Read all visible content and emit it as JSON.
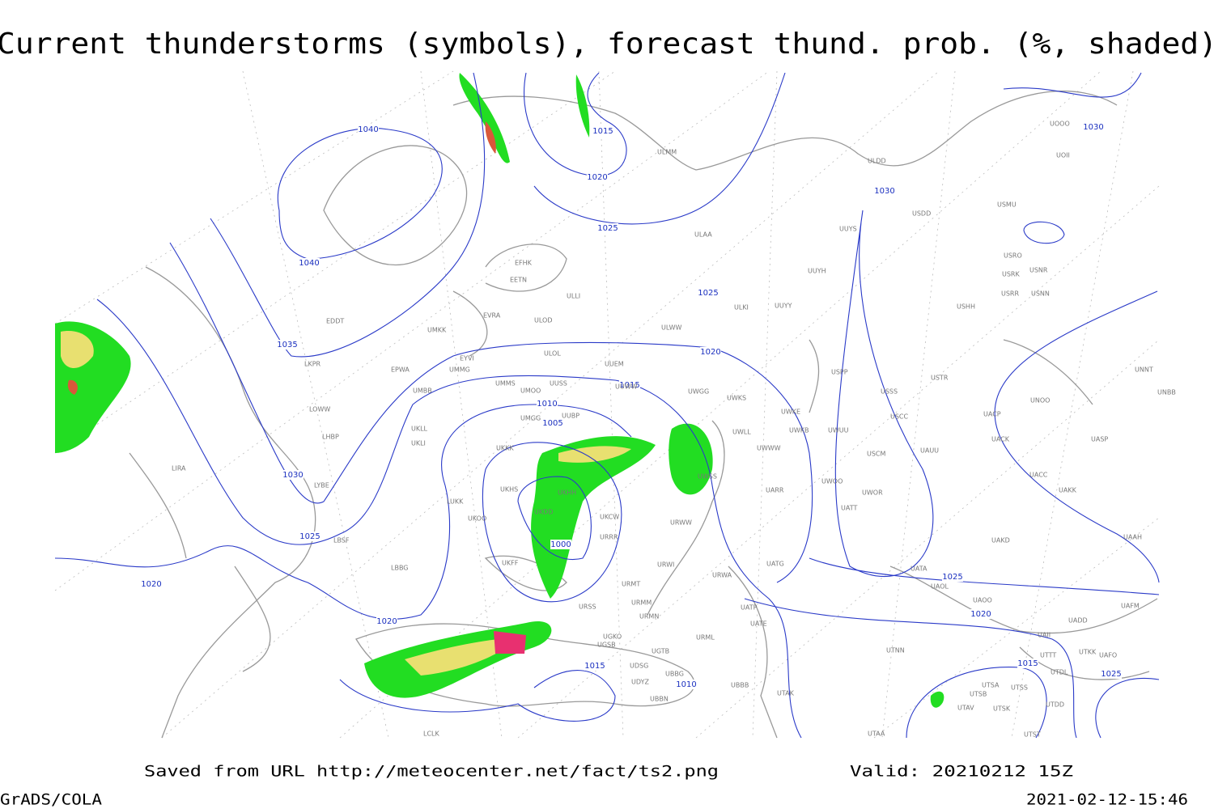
{
  "title": "Current thunderstorms (symbols), forecast thund. prob. (%, shaded)",
  "footer": {
    "source": "Saved from URL http://meteocenter.net/fact/ts2.png",
    "valid": "Valid: 20210212 15Z",
    "software": "GrADS/COLA",
    "timestamp": "2021-02-12-15:46"
  },
  "isobar_labels": [
    1040,
    1040,
    1035,
    1030,
    1025,
    1020,
    1020,
    1015,
    1020,
    1025,
    1025,
    1020,
    1015,
    1010,
    1005,
    1000,
    1015,
    1010,
    1030,
    1030,
    1025,
    1020,
    1015,
    1025
  ],
  "stations": [
    "ULMM",
    "ULDD",
    "UOOO",
    "UOII",
    "USDD",
    "USMU",
    "UUYS",
    "ULAA",
    "USRO",
    "USRK",
    "USNR",
    "USRR",
    "USNN",
    "UUYH",
    "EFHK",
    "EETN",
    "ULLI",
    "UUYY",
    "ULKI",
    "USHH",
    "EVRA",
    "ULOD",
    "EDDT",
    "UMKK",
    "ULWW",
    "ULOL",
    "UUEM",
    "EYVI",
    "UMMG",
    "EPWA",
    "LKPR",
    "USPP",
    "USTR",
    "UNNT",
    "UMMS",
    "UUSS",
    "UUWW",
    "UMOO",
    "UWGG",
    "UWKS",
    "USSS",
    "UNOO",
    "UNBB",
    "UMBB",
    "LOWW",
    "UUBP",
    "UMGG",
    "UWKE",
    "USCC",
    "UACP",
    "UWKB",
    "UWUU",
    "UWLL",
    "UACK",
    "UASP",
    "UKLL",
    "LHBP",
    "UKLI",
    "UKKK",
    "UWWW",
    "USCM",
    "UAUU",
    "LIRA",
    "LYBE",
    "UKHS",
    "UKHH",
    "UWSS",
    "UARR",
    "UWOO",
    "UWOR",
    "UACC",
    "UAKK",
    "LUKK",
    "UKOO",
    "UKDD",
    "UKCW",
    "UATT",
    "URWW",
    "URRR",
    "LBSF",
    "UAKD",
    "UAAH",
    "LBBG",
    "UKFF",
    "URWI",
    "UATG",
    "UATA",
    "URMT",
    "URWA",
    "UAOL",
    "URMM",
    "URSS",
    "UATP",
    "UAOO",
    "UAFM",
    "URMN",
    "UATE",
    "UADD",
    "UGKO",
    "URML",
    "UAII",
    "UGSB",
    "UGTB",
    "UTNN",
    "UTTT",
    "UTKK",
    "UAFO",
    "UDSG",
    "UBBG",
    "UTDL",
    "UDYZ",
    "UBBB",
    "UTSA",
    "UTSS",
    "UTAK",
    "UTSB",
    "UBBN",
    "UTDD",
    "UTAV",
    "UTSK",
    "LCLK",
    "UTAA",
    "UTST"
  ]
}
